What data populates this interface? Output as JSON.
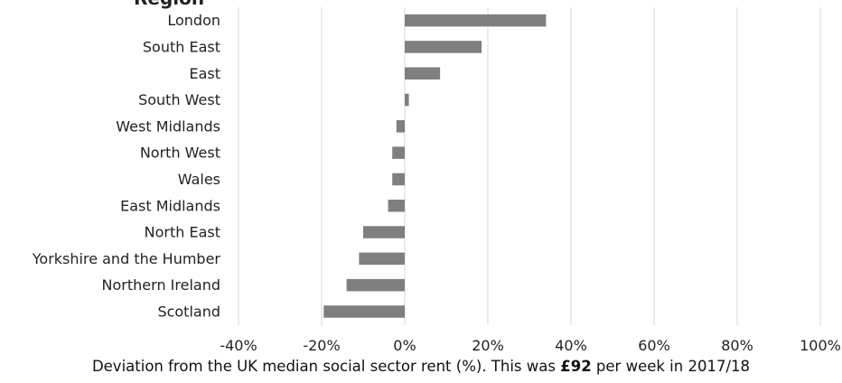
{
  "top_partial_text": "Region",
  "chart_data": {
    "type": "bar",
    "orientation": "horizontal",
    "categories": [
      "London",
      "South East",
      "East",
      "South West",
      "West Midlands",
      "North West",
      "Wales",
      "East Midlands",
      "North East",
      "Yorkshire and the Humber",
      "Northern Ireland",
      "Scotland"
    ],
    "values": [
      34,
      18.5,
      8.5,
      1,
      -2,
      -3,
      -3,
      -4,
      -10,
      -11,
      -14,
      -19.5
    ],
    "xlim": [
      -40,
      100
    ],
    "xticks": [
      -40,
      -20,
      0,
      20,
      40,
      60,
      80,
      100
    ],
    "xtick_labels": [
      "-40%",
      "-20%",
      "0%",
      "20%",
      "40%",
      "60%",
      "80%",
      "100%"
    ],
    "xlabel_parts": {
      "before": "Deviation from the UK median social sector rent (%).  This was ",
      "bold": "£92",
      "after": " per week in 2017/18"
    },
    "grid": true,
    "bar_color": "#7f7f7f",
    "grid_color": "#d9d9d9"
  }
}
